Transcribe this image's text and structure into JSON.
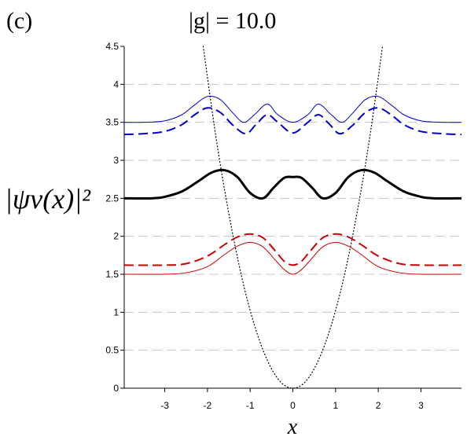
{
  "panel_label": "(c)",
  "chart_data": {
    "type": "line",
    "title": "|g| = 10.0",
    "xlabel": "x",
    "ylabel": "|ψν(x)|²",
    "xlim": [
      -3.95,
      3.95
    ],
    "ylim": [
      0,
      4.5
    ],
    "xticks": [
      "-3",
      "-2",
      "-1",
      "0",
      "1",
      "2",
      "3"
    ],
    "yticks": [
      "0",
      "0.5",
      "1",
      "1.5",
      "2",
      "2.5",
      "3",
      "3.5",
      "4",
      "4.5"
    ],
    "grid": "horizontal dashed",
    "series": [
      {
        "style": "dotted",
        "color": "#000000",
        "x": [
          -2.1,
          -1.8,
          -1.5,
          -1.2,
          -0.9,
          -0.6,
          -0.3,
          0,
          0.3,
          0.6,
          0.9,
          1.2,
          1.5,
          1.8,
          2.1
        ],
        "y": [
          4.5,
          3.3,
          2.3,
          1.47,
          0.83,
          0.37,
          0.09,
          0,
          0.09,
          0.37,
          0.83,
          1.47,
          2.3,
          3.3,
          4.5
        ]
      },
      {
        "style": "solid-thin",
        "color": "#0000cc",
        "x": [
          -3.95,
          -3.5,
          -3,
          -2.6,
          -2.3,
          -2,
          -1.7,
          -1.4,
          -1.15,
          -0.9,
          -0.6,
          -0.35,
          0,
          0.35,
          0.6,
          0.9,
          1.15,
          1.4,
          1.7,
          2,
          2.3,
          2.6,
          3,
          3.5,
          3.95
        ],
        "y": [
          3.5,
          3.5,
          3.52,
          3.6,
          3.73,
          3.84,
          3.8,
          3.62,
          3.5,
          3.6,
          3.74,
          3.6,
          3.5,
          3.6,
          3.74,
          3.6,
          3.5,
          3.62,
          3.8,
          3.84,
          3.73,
          3.6,
          3.52,
          3.5,
          3.5
        ]
      },
      {
        "style": "dashed",
        "color": "#0000cc",
        "x": [
          -3.95,
          -3.5,
          -3,
          -2.6,
          -2.3,
          -2,
          -1.7,
          -1.4,
          -1.1,
          -0.85,
          -0.6,
          -0.35,
          0,
          0.35,
          0.6,
          0.85,
          1.1,
          1.4,
          1.7,
          2,
          2.3,
          2.6,
          3,
          3.5,
          3.95
        ],
        "y": [
          3.34,
          3.35,
          3.38,
          3.47,
          3.6,
          3.69,
          3.63,
          3.46,
          3.35,
          3.48,
          3.6,
          3.5,
          3.36,
          3.5,
          3.6,
          3.48,
          3.35,
          3.46,
          3.63,
          3.69,
          3.6,
          3.47,
          3.38,
          3.35,
          3.34
        ]
      },
      {
        "style": "solid-thick",
        "color": "#000000",
        "x": [
          -3.95,
          -3.3,
          -3,
          -2.6,
          -2.2,
          -1.9,
          -1.6,
          -1.3,
          -1,
          -0.7,
          -0.45,
          -0.2,
          0,
          0.2,
          0.45,
          0.7,
          1,
          1.3,
          1.6,
          1.9,
          2.2,
          2.6,
          3,
          3.3,
          3.95
        ],
        "y": [
          2.5,
          2.5,
          2.52,
          2.59,
          2.73,
          2.84,
          2.87,
          2.78,
          2.57,
          2.5,
          2.64,
          2.77,
          2.78,
          2.77,
          2.64,
          2.5,
          2.57,
          2.78,
          2.87,
          2.84,
          2.73,
          2.59,
          2.52,
          2.5,
          2.5
        ]
      },
      {
        "style": "dashed",
        "color": "#cc0000",
        "x": [
          -3.95,
          -3,
          -2.5,
          -2,
          -1.6,
          -1.3,
          -1,
          -0.7,
          -0.4,
          -0.2,
          0,
          0.2,
          0.4,
          0.7,
          1,
          1.3,
          1.6,
          2,
          2.5,
          3,
          3.95
        ],
        "y": [
          1.62,
          1.62,
          1.64,
          1.74,
          1.89,
          1.99,
          2.03,
          1.98,
          1.8,
          1.67,
          1.62,
          1.67,
          1.8,
          1.98,
          2.03,
          1.99,
          1.89,
          1.74,
          1.64,
          1.62,
          1.62
        ]
      },
      {
        "style": "solid-thin",
        "color": "#cc0000",
        "x": [
          -3.95,
          -3,
          -2.5,
          -2,
          -1.6,
          -1.3,
          -1,
          -0.7,
          -0.4,
          -0.2,
          0,
          0.2,
          0.4,
          0.7,
          1,
          1.3,
          1.6,
          2,
          2.5,
          3,
          3.95
        ],
        "y": [
          1.5,
          1.5,
          1.52,
          1.6,
          1.76,
          1.87,
          1.92,
          1.86,
          1.68,
          1.56,
          1.5,
          1.56,
          1.68,
          1.86,
          1.92,
          1.87,
          1.76,
          1.6,
          1.52,
          1.5,
          1.5
        ]
      }
    ]
  }
}
